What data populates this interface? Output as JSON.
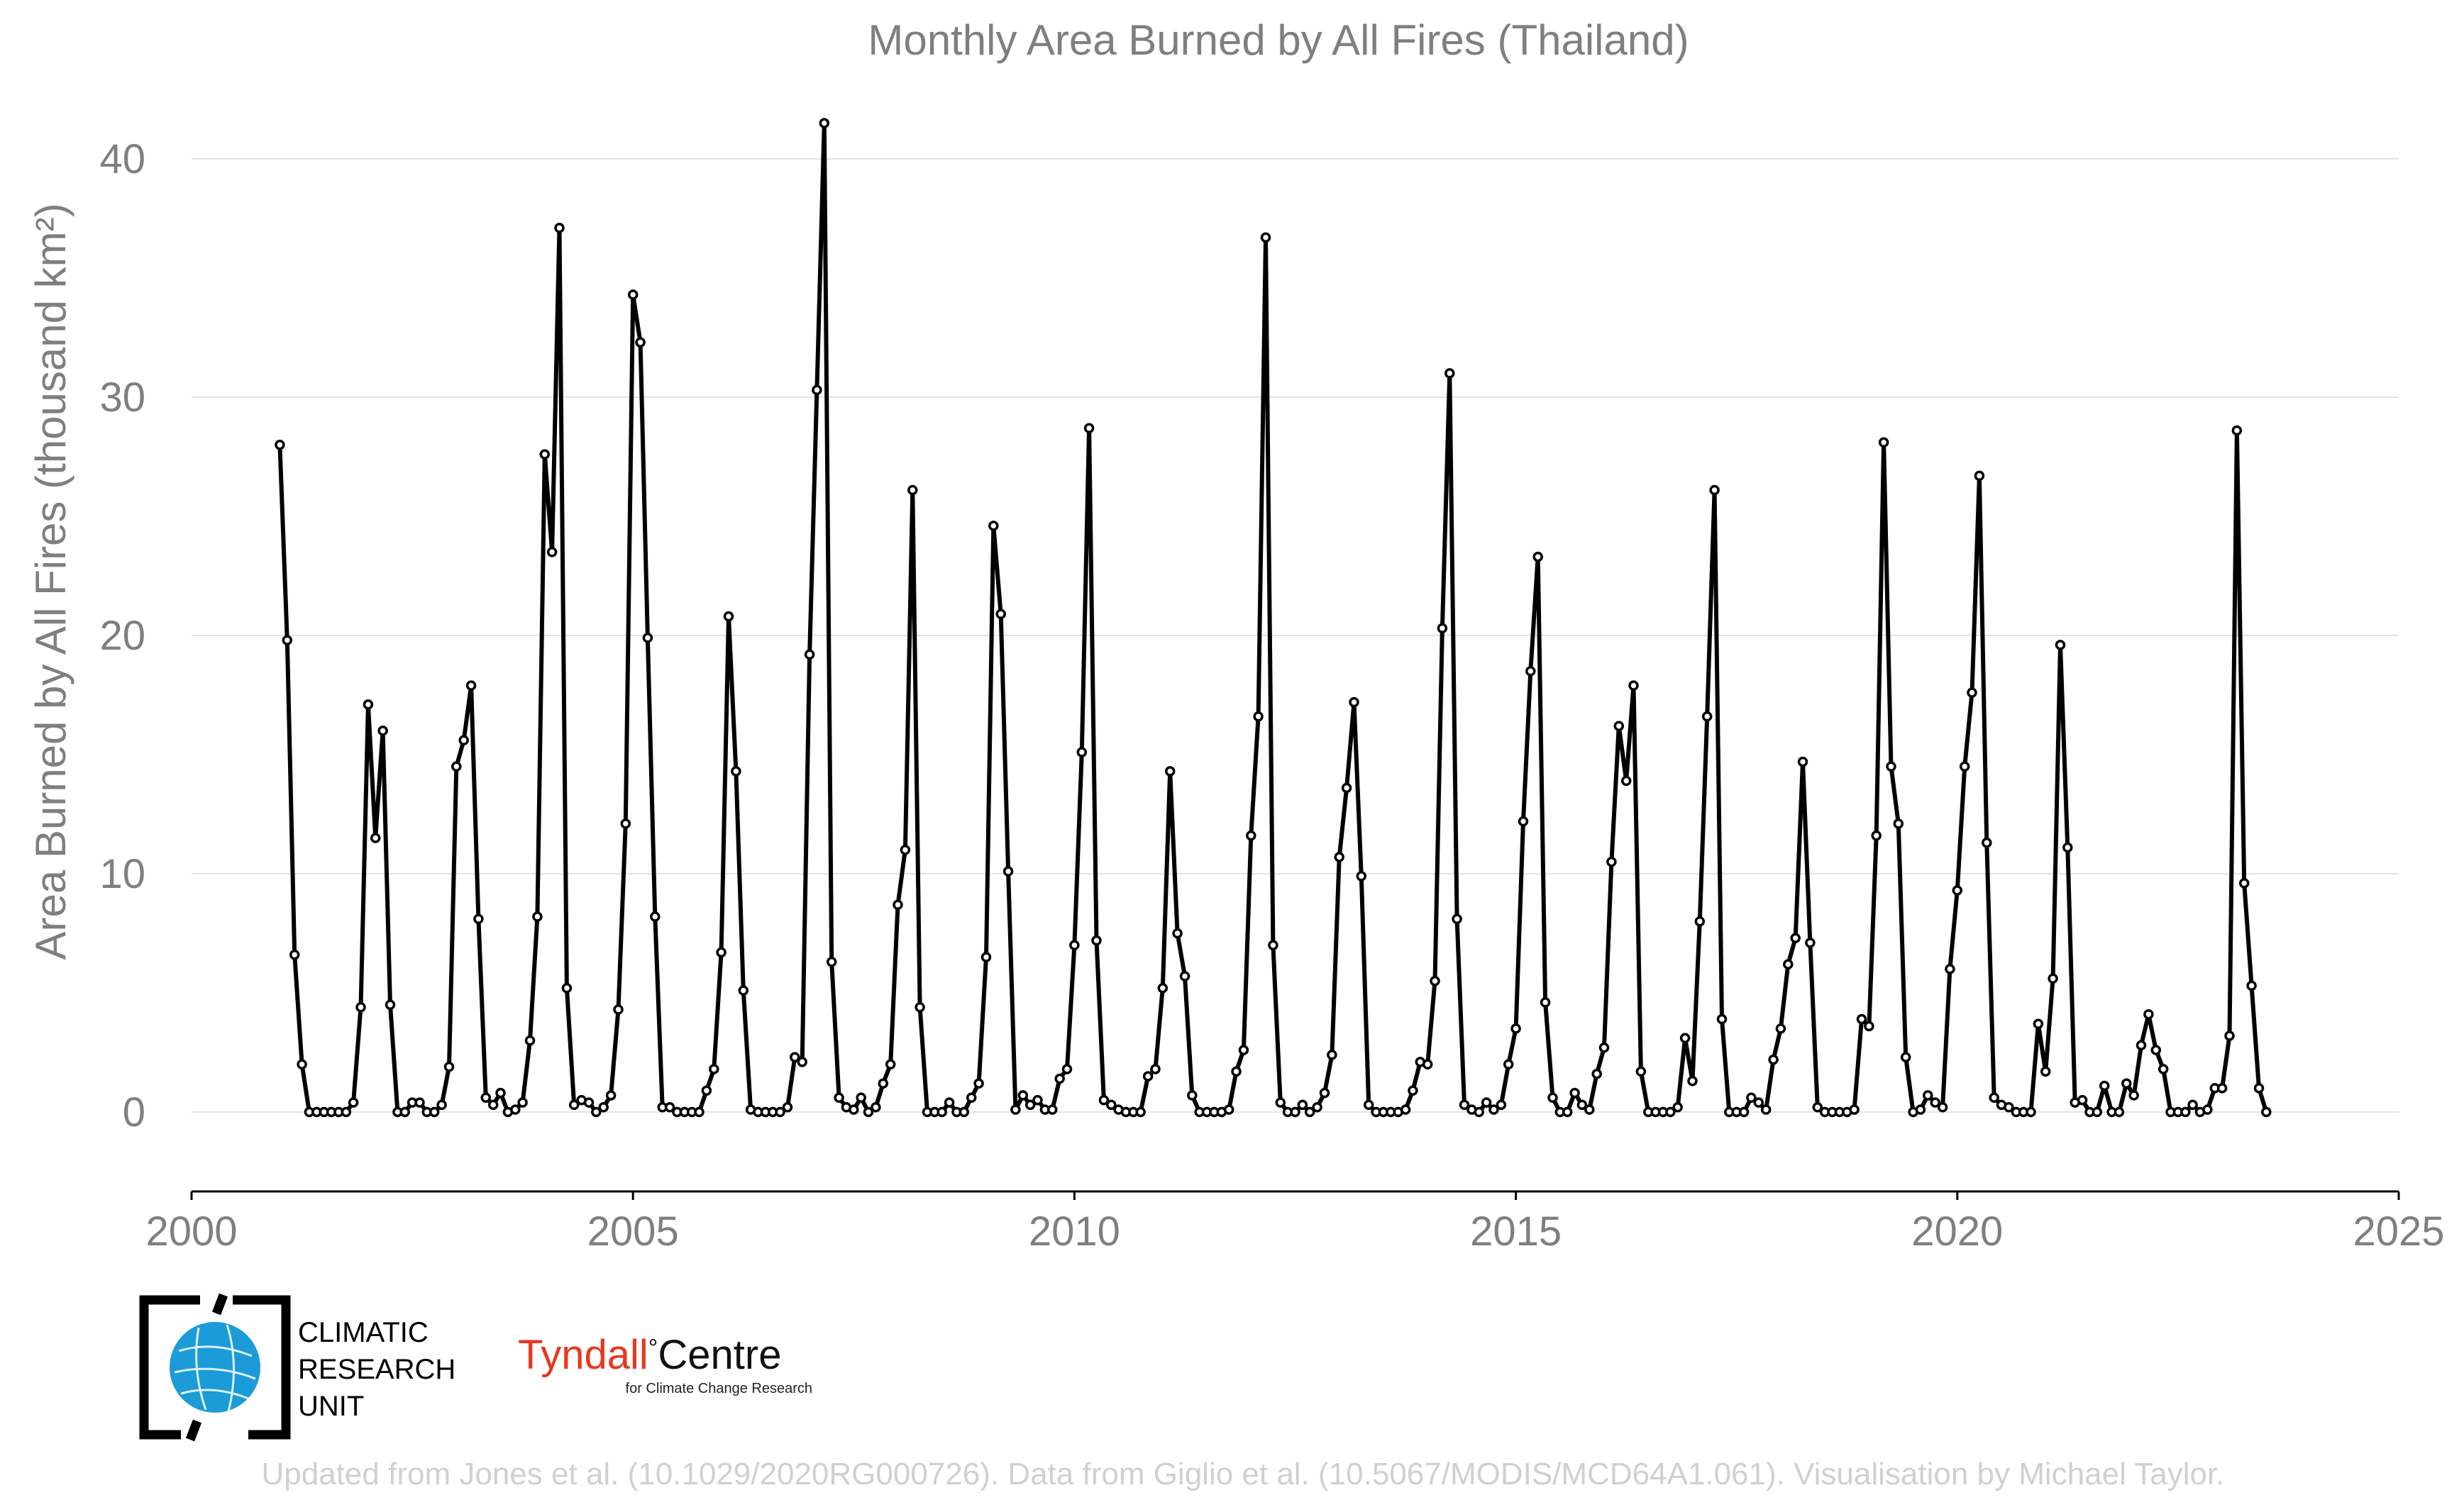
{
  "chart_data": {
    "type": "line",
    "title": "Monthly Area Burned by All Fires (Thailand)",
    "ylabel": "Area Burned by All Fires (thousand km²)",
    "xlabel": "",
    "xlim": [
      2000,
      2025
    ],
    "ylim": [
      -3.3,
      43
    ],
    "x_ticks": [
      2000,
      2005,
      2010,
      2015,
      2020,
      2025
    ],
    "y_ticks": [
      0,
      10,
      20,
      30,
      40
    ],
    "grid": true,
    "x_start": 2001.0,
    "x_step_months": 1,
    "series": [
      {
        "color": "#000000",
        "values": [
          28.0,
          19.8,
          6.6,
          2.0,
          0.0,
          0.0,
          0.0,
          0.0,
          0.0,
          0.0,
          0.4,
          4.4,
          17.1,
          11.5,
          16.0,
          4.5,
          0.0,
          0.0,
          0.4,
          0.4,
          0.0,
          0.0,
          0.3,
          1.9,
          14.5,
          15.6,
          17.9,
          8.1,
          0.6,
          0.3,
          0.8,
          0.0,
          0.1,
          0.4,
          3.0,
          8.2,
          27.6,
          23.5,
          37.1,
          5.2,
          0.3,
          0.5,
          0.4,
          0.0,
          0.2,
          0.7,
          4.3,
          12.1,
          34.3,
          32.3,
          19.9,
          8.2,
          0.2,
          0.2,
          0.0,
          0.0,
          0.0,
          0.0,
          0.9,
          1.8,
          6.7,
          20.8,
          14.3,
          5.1,
          0.1,
          0.0,
          0.0,
          0.0,
          0.0,
          0.2,
          2.3,
          2.1,
          19.2,
          30.3,
          41.5,
          6.3,
          0.6,
          0.2,
          0.1,
          0.6,
          0.0,
          0.2,
          1.2,
          2.0,
          8.7,
          11.0,
          26.1,
          4.4,
          0.0,
          0.0,
          0.0,
          0.4,
          0.0,
          0.0,
          0.6,
          1.2,
          6.5,
          24.6,
          20.9,
          10.1,
          0.1,
          0.7,
          0.3,
          0.5,
          0.1,
          0.1,
          1.4,
          1.8,
          7.0,
          15.1,
          28.7,
          7.2,
          0.5,
          0.3,
          0.1,
          0.0,
          0.0,
          0.0,
          1.5,
          1.8,
          5.2,
          14.3,
          7.5,
          5.7,
          0.7,
          0.0,
          0.0,
          0.0,
          0.0,
          0.1,
          1.7,
          2.6,
          11.6,
          16.6,
          36.7,
          7.0,
          0.4,
          0.0,
          0.0,
          0.3,
          0.0,
          0.2,
          0.8,
          2.4,
          10.7,
          13.6,
          17.2,
          9.9,
          0.3,
          0.0,
          0.0,
          0.0,
          0.0,
          0.1,
          0.9,
          2.1,
          2.0,
          5.5,
          20.3,
          31.0,
          8.1,
          0.3,
          0.1,
          0.0,
          0.4,
          0.1,
          0.3,
          2.0,
          3.5,
          12.2,
          18.5,
          23.3,
          4.6,
          0.6,
          0.0,
          0.0,
          0.8,
          0.3,
          0.1,
          1.6,
          2.7,
          10.5,
          16.2,
          13.9,
          17.9,
          1.7,
          0.0,
          0.0,
          0.0,
          0.0,
          0.2,
          3.1,
          1.3,
          8.0,
          16.6,
          26.1,
          3.9,
          0.0,
          0.0,
          0.0,
          0.6,
          0.4,
          0.1,
          2.2,
          3.5,
          6.2,
          7.3,
          14.7,
          7.1,
          0.2,
          0.0,
          0.0,
          0.0,
          0.0,
          0.1,
          3.9,
          3.6,
          11.6,
          28.1,
          14.5,
          12.1,
          2.3,
          0.0,
          0.1,
          0.7,
          0.4,
          0.2,
          6.0,
          9.3,
          14.5,
          17.6,
          26.7,
          11.3,
          0.6,
          0.3,
          0.2,
          0.0,
          0.0,
          0.0,
          3.7,
          1.7,
          5.6,
          19.6,
          11.1,
          0.4,
          0.5,
          0.0,
          0.0,
          1.1,
          0.0,
          0.0,
          1.2,
          0.7,
          2.8,
          4.1,
          2.6,
          1.8,
          0.0,
          0.0,
          0.0,
          0.3,
          0.0,
          0.1,
          1.0,
          1.0,
          3.2,
          28.6,
          9.6,
          5.3,
          1.0,
          0.0
        ]
      }
    ]
  },
  "logos": {
    "cru_lines": [
      "CLIMATIC",
      "RESEARCH",
      "UNIT"
    ],
    "tyndall_red": "Tyndall",
    "tyndall_degree": "°",
    "tyndall_black": "Centre",
    "tyndall_sub": "for Climate Change Research"
  },
  "footer": "Updated from Jones et al. (10.1029/2020RG000726). Data from Giglio et al. (10.5067/MODIS/MCD64A1.061). Visualisation by Michael Taylor."
}
